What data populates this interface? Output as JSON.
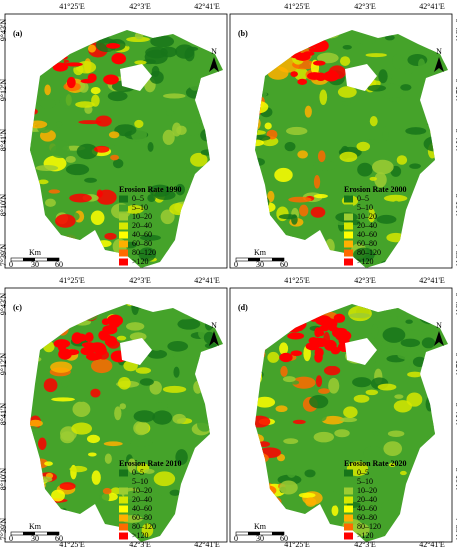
{
  "panels": [
    {
      "label": "(a)",
      "legend_title": "Erosion Rate 1990"
    },
    {
      "label": "(b)",
      "legend_title": "Erosion Rate 2000"
    },
    {
      "label": "(c)",
      "legend_title": "Erosion Rate 2010"
    },
    {
      "label": "(d)",
      "legend_title": "Erosion Rate 2020"
    }
  ],
  "legend": [
    {
      "label": "0–5",
      "color": "#17751a"
    },
    {
      "label": "5–10",
      "color": "#45a32a"
    },
    {
      "label": "10–20",
      "color": "#9ccd32"
    },
    {
      "label": "20–40",
      "color": "#d6e800"
    },
    {
      "label": "40–60",
      "color": "#ffff00"
    },
    {
      "label": "60–80",
      "color": "#ffb000"
    },
    {
      "label": "80–120",
      "color": "#ff6a00"
    },
    {
      "label": ">120",
      "color": "#ff0000"
    }
  ],
  "lon_labels": [
    "41°25'E",
    "42°3'E",
    "42°41'E"
  ],
  "lat_labels": [
    "9°43'N",
    "9°12'N",
    "8°41'N",
    "8°10'N",
    "7°39'N"
  ],
  "scale": {
    "unit": "Km",
    "ticks": [
      "0",
      "30",
      "60"
    ]
  },
  "north": "N"
}
